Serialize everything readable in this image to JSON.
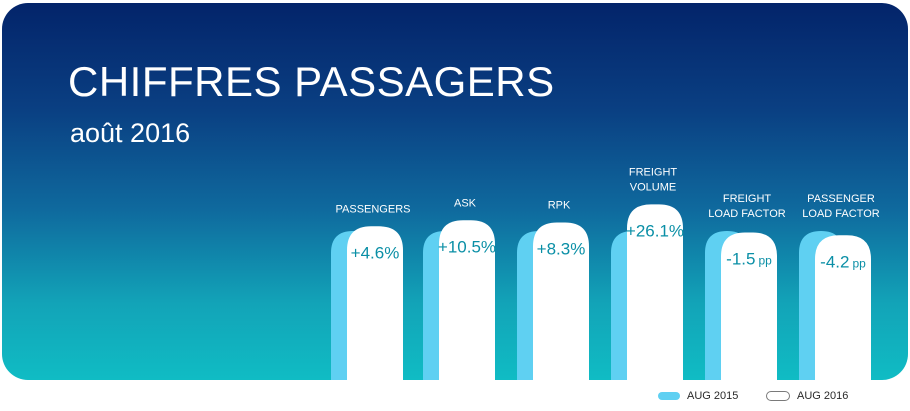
{
  "title": "CHIFFRES PASSAGERS",
  "subtitle": "août 2016",
  "colors": {
    "aug2015": "#5fd0f2",
    "aug2016": "#ffffff",
    "value_text": "#0a8fa6"
  },
  "legend": [
    {
      "label": "AUG 2015",
      "color": "#5fd0f2"
    },
    {
      "label": "AUG 2016",
      "color": "#ffffff"
    }
  ],
  "chart_data": {
    "type": "bar",
    "title": "CHIFFRES PASSAGERS",
    "subtitle": "août 2016",
    "categories": [
      [
        "PASSENGERS"
      ],
      [
        "ASK"
      ],
      [
        "RPK"
      ],
      [
        "FREIGHT",
        "VOLUME"
      ],
      [
        "FREIGHT",
        "LOAD FACTOR"
      ],
      [
        "PASSENGER",
        "LOAD FACTOR"
      ]
    ],
    "series": [
      {
        "name": "AUG 2015",
        "values": [
          100,
          100,
          100,
          100,
          100,
          100
        ]
      },
      {
        "name": "AUG 2016",
        "values": [
          104.6,
          110.5,
          108.3,
          126.1,
          98.5,
          95.8
        ]
      }
    ],
    "change_labels": [
      {
        "value": "+4.6%",
        "unit": ""
      },
      {
        "value": "+10.5%",
        "unit": ""
      },
      {
        "value": "+8.3%",
        "unit": ""
      },
      {
        "value": "+26.1%",
        "unit": ""
      },
      {
        "value": "-1.5",
        "unit": "pp"
      },
      {
        "value": "-4.2",
        "unit": "pp"
      }
    ],
    "legend_position": "bottom-right",
    "grid": false
  }
}
